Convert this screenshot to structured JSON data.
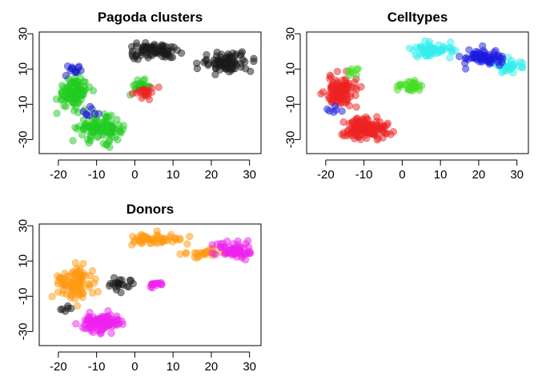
{
  "chart_data": [
    {
      "type": "scatter",
      "title": "Pagoda clusters",
      "xlabel": "",
      "ylabel": "",
      "xlim": [
        -25,
        33
      ],
      "ylim": [
        -38,
        31
      ],
      "xticks": [
        -20,
        -10,
        0,
        10,
        20,
        30
      ],
      "yticks": [
        -30,
        -10,
        10,
        30
      ],
      "xtick_labels": [
        "-20",
        "-10",
        "0",
        "10",
        "20",
        "30"
      ],
      "ytick_labels": [
        "-30",
        "-10",
        "10",
        "30"
      ],
      "colors": {
        "green": "#22cc22",
        "black": "#1a1a1a",
        "blue": "#1a1acc",
        "red": "#ee2222"
      },
      "groups": [
        {
          "color": "green",
          "center": [
            -16,
            -3
          ],
          "spread": [
            4,
            8
          ],
          "count": 95
        },
        {
          "color": "green",
          "center": [
            -9,
            -24
          ],
          "spread": [
            5,
            6
          ],
          "count": 110
        },
        {
          "color": "green",
          "center": [
            2,
            0
          ],
          "spread": [
            3,
            3
          ],
          "count": 25
        },
        {
          "color": "black",
          "center": [
            5,
            20
          ],
          "spread": [
            6,
            4
          ],
          "count": 75
        },
        {
          "color": "black",
          "center": [
            24,
            14
          ],
          "spread": [
            6,
            5
          ],
          "count": 85
        },
        {
          "color": "blue",
          "center": [
            -16,
            10
          ],
          "spread": [
            2,
            3
          ],
          "count": 12
        },
        {
          "color": "blue",
          "center": [
            -11,
            -14
          ],
          "spread": [
            2,
            4
          ],
          "count": 8
        },
        {
          "color": "red",
          "center": [
            3,
            -3
          ],
          "spread": [
            3,
            3
          ],
          "count": 22
        }
      ]
    },
    {
      "type": "scatter",
      "title": "Celltypes",
      "xlabel": "",
      "ylabel": "",
      "xlim": [
        -25,
        33
      ],
      "ylim": [
        -38,
        31
      ],
      "xticks": [
        -20,
        -10,
        0,
        10,
        20,
        30
      ],
      "yticks": [
        -30,
        -10,
        10,
        30
      ],
      "xtick_labels": [
        "-20",
        "-10",
        "0",
        "10",
        "20",
        "30"
      ],
      "ytick_labels": [
        "-30",
        "-10",
        "10",
        "30"
      ],
      "colors": {
        "red": "#ee2222",
        "cyan": "#33eeee",
        "blue": "#1a1ae0",
        "green": "#44dd22"
      },
      "groups": [
        {
          "color": "red",
          "center": [
            -16,
            -3
          ],
          "spread": [
            4,
            8
          ],
          "count": 100
        },
        {
          "color": "red",
          "center": [
            -9,
            -24
          ],
          "spread": [
            5,
            6
          ],
          "count": 115
        },
        {
          "color": "cyan",
          "center": [
            8,
            21
          ],
          "spread": [
            5,
            4
          ],
          "count": 60
        },
        {
          "color": "cyan",
          "center": [
            28,
            12
          ],
          "spread": [
            3,
            4
          ],
          "count": 35
        },
        {
          "color": "blue",
          "center": [
            21,
            16
          ],
          "spread": [
            5,
            4
          ],
          "count": 70
        },
        {
          "color": "green",
          "center": [
            2,
            0
          ],
          "spread": [
            3,
            3
          ],
          "count": 28
        },
        {
          "color": "green",
          "center": [
            -13,
            8
          ],
          "spread": [
            2,
            2
          ],
          "count": 8
        },
        {
          "color": "blue",
          "center": [
            -18,
            -13
          ],
          "spread": [
            2,
            2
          ],
          "count": 6
        }
      ]
    },
    {
      "type": "scatter",
      "title": "Donors",
      "xlabel": "",
      "ylabel": "",
      "xlim": [
        -25,
        33
      ],
      "ylim": [
        -38,
        31
      ],
      "xticks": [
        -20,
        -10,
        0,
        10,
        20,
        30
      ],
      "yticks": [
        -30,
        -10,
        10,
        30
      ],
      "xtick_labels": [
        "-20",
        "-10",
        "0",
        "10",
        "20",
        "30"
      ],
      "ytick_labels": [
        "-30",
        "-10",
        "10",
        "30"
      ],
      "colors": {
        "orange": "#ff9911",
        "magenta": "#ee22ee",
        "black": "#1a1a1a"
      },
      "groups": [
        {
          "color": "orange",
          "center": [
            -16,
            -3
          ],
          "spread": [
            4,
            8
          ],
          "count": 100
        },
        {
          "color": "orange",
          "center": [
            5,
            22
          ],
          "spread": [
            6,
            3
          ],
          "count": 55
        },
        {
          "color": "orange",
          "center": [
            18,
            14
          ],
          "spread": [
            6,
            3
          ],
          "count": 30
        },
        {
          "color": "magenta",
          "center": [
            -9,
            -25
          ],
          "spread": [
            5,
            5
          ],
          "count": 110
        },
        {
          "color": "magenta",
          "center": [
            26,
            16
          ],
          "spread": [
            5,
            5
          ],
          "count": 60
        },
        {
          "color": "magenta",
          "center": [
            5,
            -3
          ],
          "spread": [
            3,
            2
          ],
          "count": 15
        },
        {
          "color": "black",
          "center": [
            -4,
            -3
          ],
          "spread": [
            3,
            4
          ],
          "count": 22
        },
        {
          "color": "black",
          "center": [
            -18,
            -18
          ],
          "spread": [
            2,
            2
          ],
          "count": 6
        }
      ]
    }
  ]
}
